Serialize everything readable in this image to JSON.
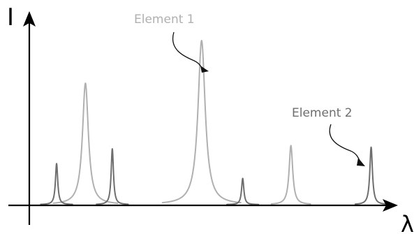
{
  "chart_data": {
    "type": "line",
    "title": "",
    "xlabel": "λ",
    "ylabel": "I",
    "grid": false,
    "legend": "none",
    "axis_ticks": false,
    "xlim": [
      0,
      100
    ],
    "ylim": [
      0,
      100
    ],
    "series": [
      {
        "name": "Element 1",
        "color": "#b0b0b0",
        "peaks": [
          {
            "x": 19.5,
            "height": 74,
            "width": 0.9
          },
          {
            "x": 48.9,
            "height": 100,
            "width": 1.1
          },
          {
            "x": 71.5,
            "height": 36,
            "width": 0.55
          }
        ]
      },
      {
        "name": "Element 2",
        "color": "#6e6e6e",
        "peaks": [
          {
            "x": 12.2,
            "height": 25,
            "width": 0.35
          },
          {
            "x": 26.3,
            "height": 34,
            "width": 0.35
          },
          {
            "x": 59.3,
            "height": 16,
            "width": 0.35
          },
          {
            "x": 91.8,
            "height": 35,
            "width": 0.4
          }
        ]
      }
    ],
    "annotations": [
      {
        "text": "Element 1",
        "series": "Element 1",
        "color": "#b0b0b0"
      },
      {
        "text": "Element 2",
        "series": "Element 2",
        "color": "#6e6e6e"
      }
    ]
  }
}
